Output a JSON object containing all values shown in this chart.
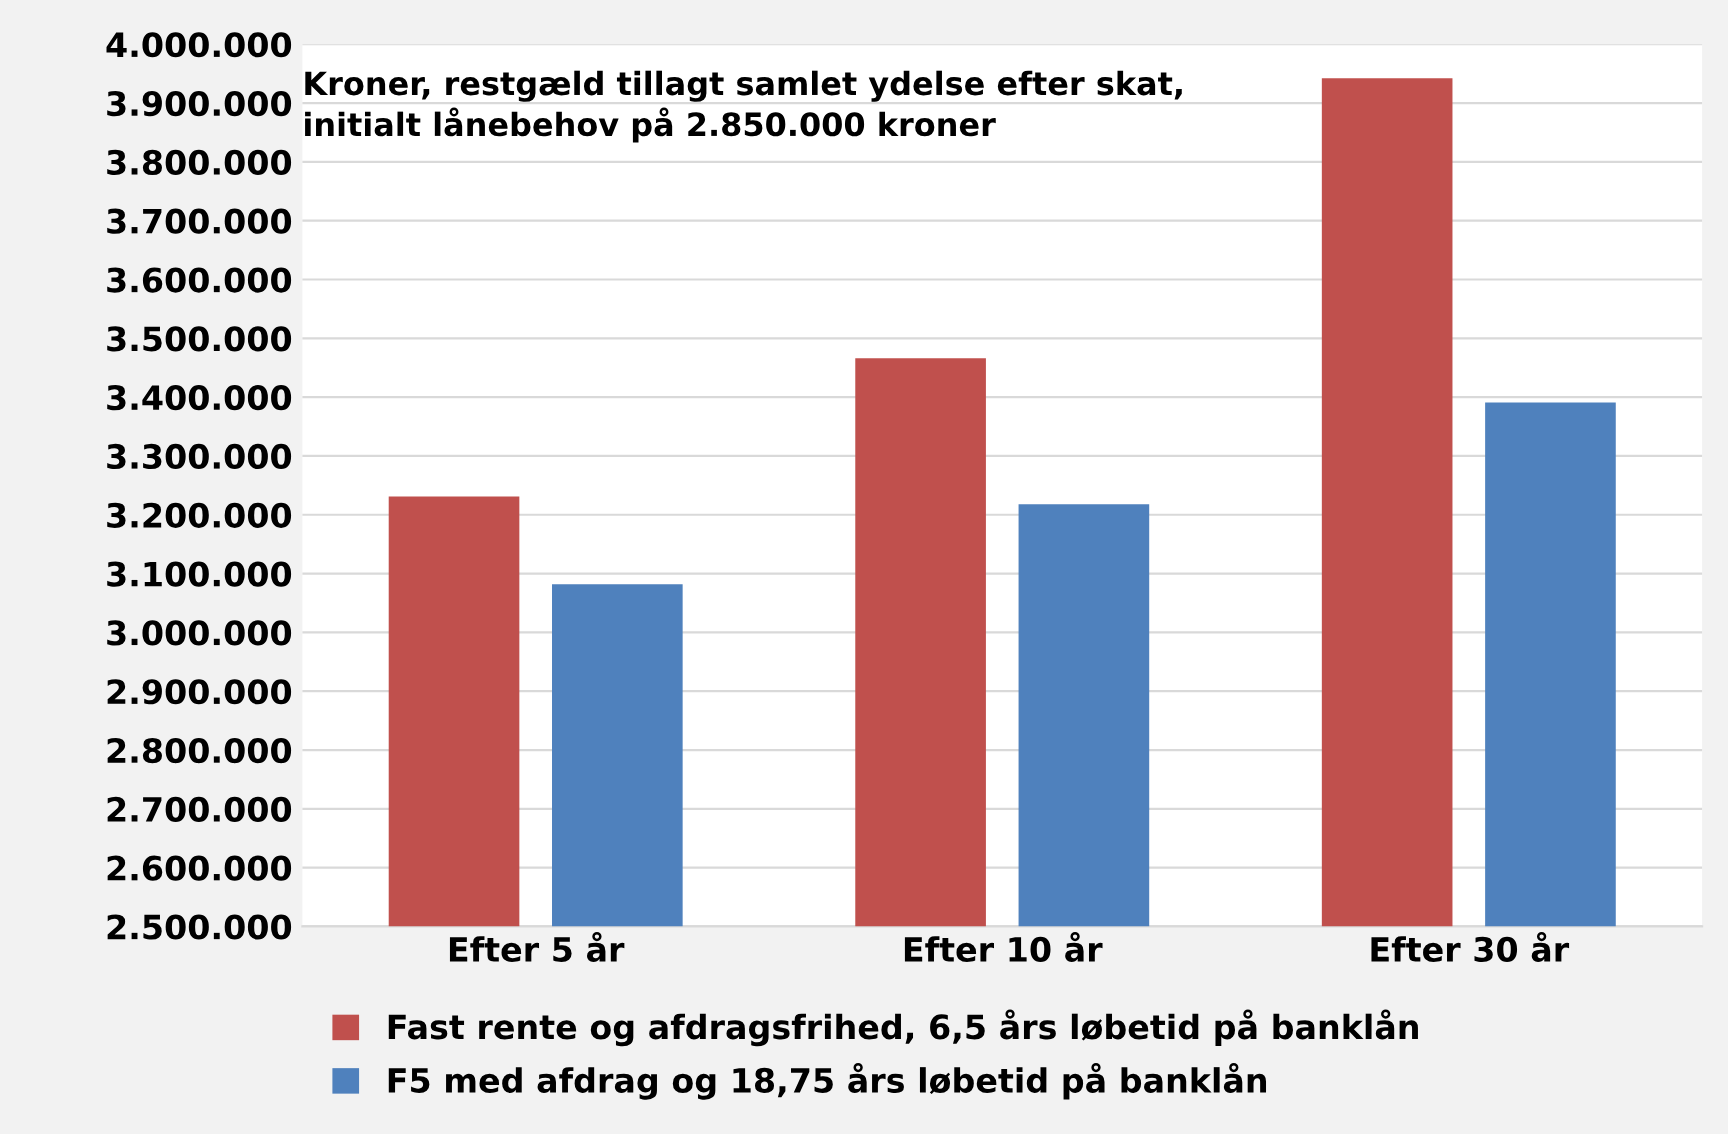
{
  "chart_data": {
    "type": "bar",
    "title": "Kroner, restgæld tillagt samlet ydelse efter skat,\ninitialt lånebehov på 2.850.000 kroner",
    "categories": [
      "Efter 5 år",
      "Efter 10 år",
      "Efter 30 år"
    ],
    "series": [
      {
        "name": "Fast rente og afdragsfrihed, 6,5 års løbetid på banklån",
        "color": "#c0504d",
        "values": [
          3231000,
          3466000,
          3942000
        ]
      },
      {
        "name": "F5 med afdrag og 18,75 års løbetid på banklån",
        "color": "#4f81bd",
        "values": [
          3082000,
          3218000,
          3391000
        ]
      }
    ],
    "ylim": [
      2500000,
      4000000
    ],
    "yticks": [
      {
        "value": 2500000,
        "label": "2.500.000"
      },
      {
        "value": 2600000,
        "label": "2.600.000"
      },
      {
        "value": 2700000,
        "label": "2.700.000"
      },
      {
        "value": 2800000,
        "label": "2.800.000"
      },
      {
        "value": 2900000,
        "label": "2.900.000"
      },
      {
        "value": 3000000,
        "label": "3.000.000"
      },
      {
        "value": 3100000,
        "label": "3.100.000"
      },
      {
        "value": 3200000,
        "label": "3.200.000"
      },
      {
        "value": 3300000,
        "label": "3.300.000"
      },
      {
        "value": 3400000,
        "label": "3.400.000"
      },
      {
        "value": 3500000,
        "label": "3.500.000"
      },
      {
        "value": 3600000,
        "label": "3.600.000"
      },
      {
        "value": 3700000,
        "label": "3.700.000"
      },
      {
        "value": 3800000,
        "label": "3.800.000"
      },
      {
        "value": 3900000,
        "label": "3.900.000"
      },
      {
        "value": 4000000,
        "label": "4.000.000"
      }
    ],
    "grid": "y",
    "legend": "bottom"
  }
}
